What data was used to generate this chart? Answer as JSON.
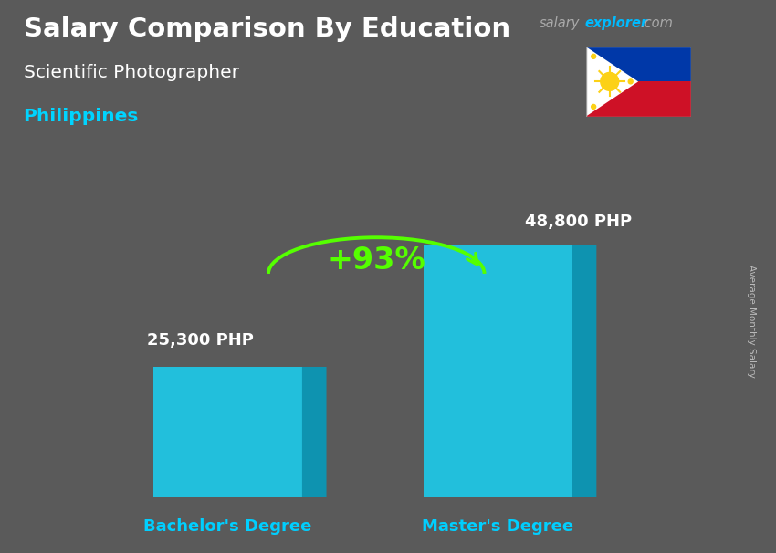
{
  "title_main": "Salary Comparison By Education",
  "subtitle": "Scientific Photographer",
  "country": "Philippines",
  "categories": [
    "Bachelor's Degree",
    "Master's Degree"
  ],
  "values": [
    25300,
    48800
  ],
  "value_labels": [
    "25,300 PHP",
    "48,800 PHP"
  ],
  "percent_label": "+93%",
  "bar_color_main": "#1EC8E8",
  "bar_color_right": "#0AAAC8",
  "bar_color_top": "#80EEFF",
  "bar_alpha": 0.92,
  "bg_color": "#5a5a5a",
  "title_color": "#ffffff",
  "subtitle_color": "#ffffff",
  "country_color": "#00d4ff",
  "value_label_color": "#ffffff",
  "category_label_color": "#00cfff",
  "ylabel_text": "Average Monthly Salary",
  "ylabel_color": "#bbbbbb",
  "percent_color": "#55ff00",
  "arrow_color": "#55ff00",
  "salary_color": "#aaaaaa",
  "explorer_color": "#00bbff",
  "com_color": "#aaaaaa"
}
